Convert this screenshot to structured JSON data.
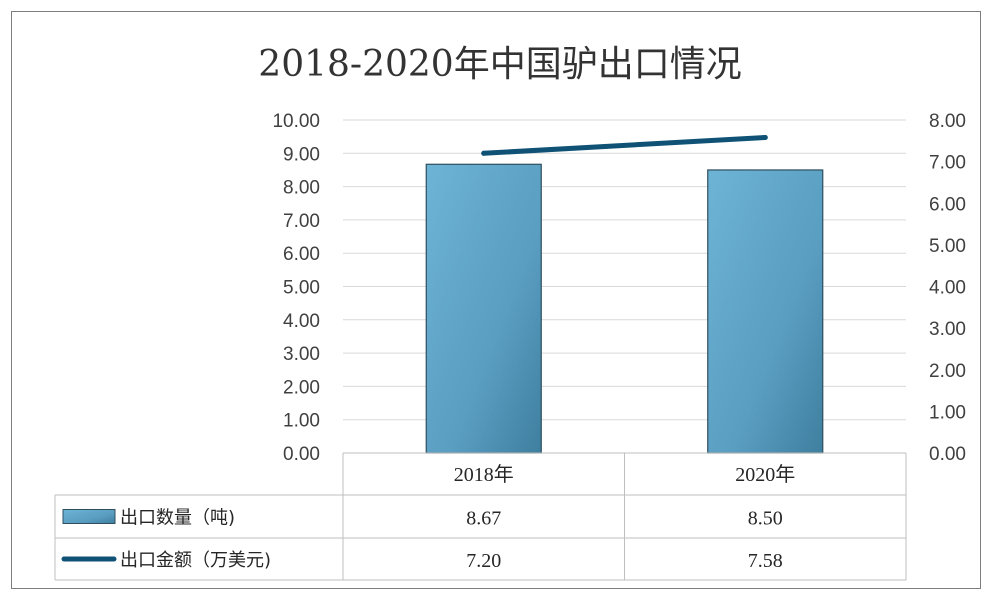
{
  "chart_data": {
    "type": "bar",
    "title": "2018-2020年中国驴出口情况",
    "categories": [
      "2018年",
      "2020年"
    ],
    "series": [
      {
        "name": "出口数量（吨)",
        "chart_type": "bar",
        "axis": "left",
        "values": [
          8.67,
          8.5
        ],
        "value_labels": [
          "8.67",
          "8.50"
        ],
        "color": "#5ba4c7"
      },
      {
        "name": "出口金额（万美元)",
        "chart_type": "line",
        "axis": "right",
        "values": [
          7.2,
          7.58
        ],
        "value_labels": [
          "7.20",
          "7.58"
        ],
        "color": "#0f5275"
      }
    ],
    "ylim_left": [
      0,
      10
    ],
    "ylim_right": [
      0,
      8
    ],
    "left_ticks": [
      "0.00",
      "1.00",
      "2.00",
      "3.00",
      "4.00",
      "5.00",
      "6.00",
      "7.00",
      "8.00",
      "9.00",
      "10.00"
    ],
    "right_ticks": [
      "0.00",
      "1.00",
      "2.00",
      "3.00",
      "4.00",
      "5.00",
      "6.00",
      "7.00",
      "8.00"
    ],
    "grid": true,
    "legend_placement": "data-table-below"
  }
}
